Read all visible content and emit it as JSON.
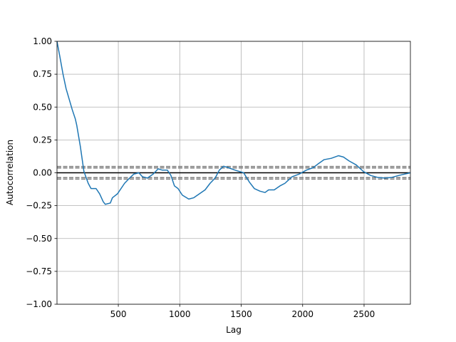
{
  "chart_data": {
    "type": "line",
    "xlabel": "Lag",
    "ylabel": "Autocorrelation",
    "x": [
      1,
      25,
      50,
      75,
      100,
      125,
      150,
      162,
      191,
      220,
      255,
      278,
      319,
      348,
      377,
      394,
      435,
      452,
      493,
      551,
      592,
      626,
      667,
      696,
      737,
      783,
      824,
      858,
      899,
      928,
      957,
      986,
      1021,
      1073,
      1114,
      1160,
      1206,
      1247,
      1288,
      1322,
      1357,
      1392,
      1450,
      1520,
      1566,
      1607,
      1653,
      1694,
      1723,
      1769,
      1815,
      1856,
      1914,
      1972,
      2030,
      2088,
      2129,
      2175,
      2233,
      2291,
      2332,
      2378,
      2436,
      2494,
      2552,
      2610,
      2668,
      2726,
      2784,
      2877
    ],
    "series": [
      {
        "name": "autocorrelation",
        "color": "#1f77b4",
        "values": [
          1.0,
          0.88,
          0.75,
          0.64,
          0.56,
          0.48,
          0.41,
          0.36,
          0.2,
          0.01,
          -0.08,
          -0.12,
          -0.12,
          -0.16,
          -0.22,
          -0.24,
          -0.23,
          -0.19,
          -0.16,
          -0.08,
          -0.04,
          -0.01,
          0.0,
          -0.03,
          -0.04,
          -0.01,
          0.03,
          0.02,
          0.02,
          -0.02,
          -0.1,
          -0.12,
          -0.17,
          -0.2,
          -0.19,
          -0.16,
          -0.13,
          -0.08,
          -0.04,
          0.02,
          0.05,
          0.04,
          0.02,
          0.0,
          -0.07,
          -0.12,
          -0.14,
          -0.15,
          -0.13,
          -0.13,
          -0.1,
          -0.08,
          -0.03,
          -0.01,
          0.02,
          0.04,
          0.07,
          0.1,
          0.11,
          0.13,
          0.12,
          0.09,
          0.06,
          0.01,
          -0.02,
          -0.035,
          -0.04,
          -0.035,
          -0.02,
          0.0
        ]
      }
    ],
    "hlines": [
      {
        "value": 0.048,
        "color": "grey",
        "dash": true
      },
      {
        "value": 0.0366,
        "color": "grey",
        "dash": true
      },
      {
        "value": 0,
        "color": "black",
        "dash": false
      },
      {
        "value": -0.0366,
        "color": "grey",
        "dash": true
      },
      {
        "value": -0.048,
        "color": "grey",
        "dash": true
      }
    ],
    "xlim": [
      1,
      2877
    ],
    "ylim": [
      -1,
      1
    ],
    "xticks": [
      500,
      1000,
      1500,
      2000,
      2500
    ],
    "yticks": [
      {
        "value": -1,
        "label": "−1.00"
      },
      {
        "value": -0.75,
        "label": "−0.75"
      },
      {
        "value": -0.5,
        "label": "−0.50"
      },
      {
        "value": -0.25,
        "label": "−0.25"
      },
      {
        "value": 0,
        "label": "0.00"
      },
      0.25,
      {
        "value": 0.5,
        "label": "0.50"
      },
      0.75,
      {
        "value": 1,
        "label": "1.00"
      }
    ],
    "grid": true
  }
}
